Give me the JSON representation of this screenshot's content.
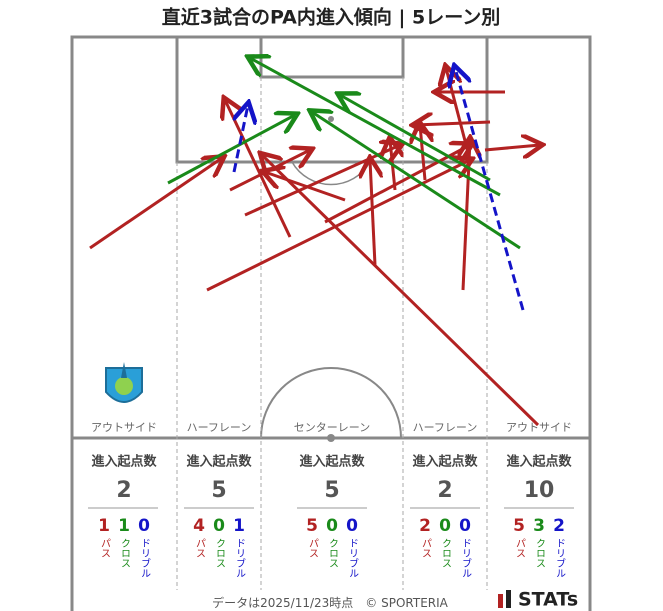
{
  "title": "直近3試合のPA内進入傾向 | 5レーン別",
  "lanes": [
    {
      "name": "アウトサイド",
      "label": "進入起点数",
      "total": 2,
      "pass": 1,
      "cross": 1,
      "dribble": 0,
      "pass_label": "パス",
      "cross_label": "クロス",
      "dribble_label": "ドリブル"
    },
    {
      "name": "ハーフレーン",
      "label": "進入起点数",
      "total": 5,
      "pass": 4,
      "cross": 0,
      "dribble": 1,
      "pass_label": "パス",
      "cross_label": "クロス",
      "dribble_label": "ドリブル"
    },
    {
      "name": "センターレーン",
      "label": "進入起点数",
      "total": 5,
      "pass": 5,
      "cross": 0,
      "dribble": 0,
      "pass_label": "パス",
      "cross_label": "クロス",
      "dribble_label": "ドリブル"
    },
    {
      "name": "ハーフレーン",
      "label": "進入起点数",
      "total": 2,
      "pass": 2,
      "cross": 0,
      "dribble": 0,
      "pass_label": "パス",
      "cross_label": "クロス",
      "dribble_label": "ドリブル"
    },
    {
      "name": "アウトサイド",
      "label": "進入起点数",
      "total": 10,
      "pass": 5,
      "cross": 3,
      "dribble": 2,
      "pass_label": "パス",
      "cross_label": "クロス",
      "dribble_label": "ドリブル"
    }
  ],
  "footer": {
    "date": "データは2025/11/23時点",
    "copyright": "© SPORTERIA",
    "brand": "STATs"
  }
}
